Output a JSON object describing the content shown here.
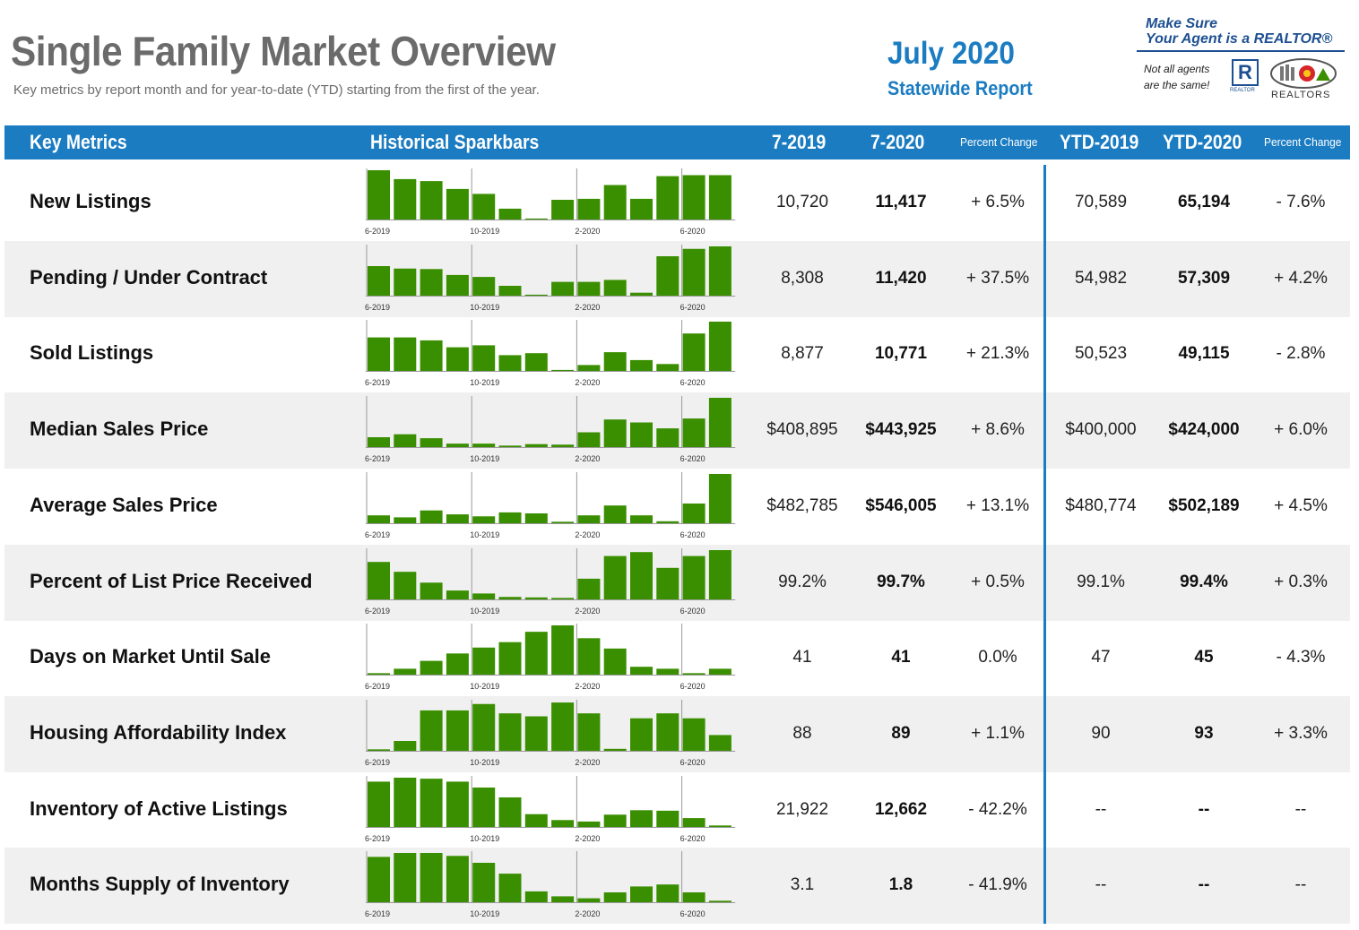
{
  "header": {
    "title": "Single Family Market Overview",
    "subtitle": "Key metrics by report month and for year-to-date (YTD) starting from the first of the year.",
    "report_month": "July 2020",
    "report_scope": "Statewide Report"
  },
  "badge": {
    "line1": "Make Sure",
    "line2": "Your Agent is a REALTOR®",
    "note1": "Not all agents",
    "note2": "are the same!",
    "realtor_mark": "R",
    "realtor_caption": "REALTOR",
    "org_caption": "REALTORS"
  },
  "columns": {
    "key_metrics": "Key Metrics",
    "sparkbars": "Historical Sparkbars",
    "m2019": "7-2019",
    "m2020": "7-2020",
    "pct1": "Percent Change",
    "ytd2019": "YTD-2019",
    "ytd2020": "YTD-2020",
    "pct2": "Percent Change"
  },
  "spark_ticks": [
    "6-2019",
    "10-2019",
    "2-2020",
    "6-2020"
  ],
  "colors": {
    "header_blue": "#1b7cc2",
    "bar_green": "#3a8f00",
    "row_shade": "#f0f0f0"
  },
  "metrics": [
    {
      "name": "New Listings",
      "m2019": "10,720",
      "m2020": "11,417",
      "pct1": "+ 6.5%",
      "ytd2019": "70,589",
      "ytd2020": "65,194",
      "pct2": "- 7.6%",
      "bars": [
        100,
        82,
        78,
        62,
        52,
        22,
        2,
        40,
        42,
        70,
        42,
        88,
        90,
        90
      ]
    },
    {
      "name": "Pending / Under Contract",
      "m2019": "8,308",
      "m2020": "11,420",
      "pct1": "+ 37.5%",
      "ytd2019": "54,982",
      "ytd2020": "57,309",
      "pct2": "+ 4.2%",
      "bars": [
        60,
        55,
        54,
        42,
        38,
        20,
        2,
        28,
        28,
        32,
        6,
        80,
        95,
        100
      ]
    },
    {
      "name": "Sold Listings",
      "m2019": "8,877",
      "m2020": "10,771",
      "pct1": "+ 21.3%",
      "ytd2019": "50,523",
      "ytd2020": "49,115",
      "pct2": "- 2.8%",
      "bars": [
        68,
        68,
        62,
        48,
        52,
        32,
        36,
        2,
        12,
        38,
        22,
        14,
        76,
        100
      ]
    },
    {
      "name": "Median Sales Price",
      "m2019": "$408,895",
      "m2020": "$443,925",
      "pct1": "+ 8.6%",
      "ytd2019": "$400,000",
      "ytd2020": "$424,000",
      "pct2": "+ 6.0%",
      "bars": [
        20,
        26,
        18,
        7,
        7,
        3,
        6,
        5,
        30,
        56,
        50,
        38,
        58,
        100
      ]
    },
    {
      "name": "Average Sales Price",
      "m2019": "$482,785",
      "m2020": "$546,005",
      "pct1": "+ 13.1%",
      "ytd2019": "$480,774",
      "ytd2020": "$502,189",
      "pct2": "+ 4.5%",
      "bars": [
        16,
        12,
        26,
        18,
        14,
        22,
        20,
        3,
        16,
        36,
        16,
        4,
        40,
        100
      ]
    },
    {
      "name": "Percent of List Price Received",
      "m2019": "99.2%",
      "m2020": "99.7%",
      "pct1": "+ 0.5%",
      "ytd2019": "99.1%",
      "ytd2020": "99.4%",
      "pct2": "+ 0.3%",
      "bars": [
        76,
        56,
        34,
        18,
        12,
        5,
        4,
        3,
        42,
        88,
        96,
        64,
        88,
        100
      ]
    },
    {
      "name": "Days on Market Until Sale",
      "m2019": "41",
      "m2020": "41",
      "pct1": "0.0%",
      "ytd2019": "47",
      "ytd2020": "45",
      "pct2": "- 4.3%",
      "bars": [
        3,
        12,
        28,
        43,
        55,
        66,
        87,
        100,
        74,
        53,
        16,
        12,
        3,
        12
      ]
    },
    {
      "name": "Housing Affordability Index",
      "m2019": "88",
      "m2020": "89",
      "pct1": "+ 1.1%",
      "ytd2019": "90",
      "ytd2020": "93",
      "pct2": "+ 3.3%",
      "bars": [
        3,
        20,
        82,
        82,
        95,
        76,
        70,
        98,
        76,
        4,
        66,
        76,
        66,
        32
      ]
    },
    {
      "name": "Inventory of Active Listings",
      "m2019": "21,922",
      "m2020": "12,662",
      "pct1": "- 42.2%",
      "ytd2019": "--",
      "ytd2020": "--",
      "pct2": "--",
      "bars": [
        92,
        100,
        98,
        92,
        80,
        60,
        26,
        14,
        11,
        25,
        34,
        33,
        18,
        3
      ]
    },
    {
      "name": "Months Supply of Inventory",
      "m2019": "3.1",
      "m2020": "1.8",
      "pct1": "- 41.9%",
      "ytd2019": "--",
      "ytd2020": "--",
      "pct2": "--",
      "bars": [
        92,
        100,
        100,
        94,
        80,
        58,
        22,
        12,
        8,
        20,
        32,
        36,
        20,
        3
      ]
    }
  ]
}
